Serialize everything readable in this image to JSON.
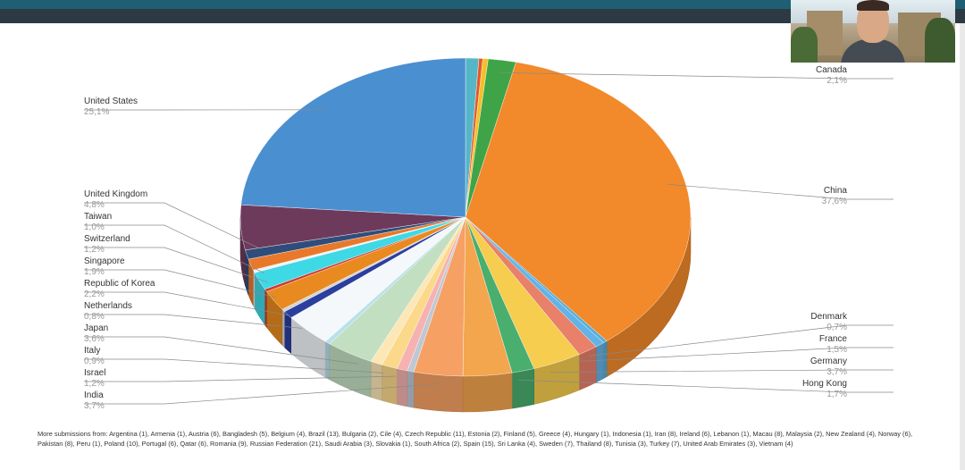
{
  "chart_data": {
    "type": "pie",
    "style": "3d-exploded",
    "slices": [
      {
        "label": "",
        "value": 1.0,
        "color": "#55b6c8"
      },
      {
        "label": "",
        "value": 0.3,
        "color": "#e35a2b"
      },
      {
        "label": "",
        "value": 0.4,
        "color": "#f4c026"
      },
      {
        "label": "Canada",
        "value": 2.1,
        "pct": "2,1%",
        "color": "#3fa447"
      },
      {
        "label": "China",
        "value": 37.6,
        "pct": "37,6%",
        "color": "#f2892a"
      },
      {
        "label": "",
        "value": 0.3,
        "color": "#5aaed8"
      },
      {
        "label": "Denmark",
        "value": 0.7,
        "pct": "0,7%",
        "color": "#64b3e6"
      },
      {
        "label": "France",
        "value": 1.5,
        "pct": "1,5%",
        "color": "#e8806a"
      },
      {
        "label": "Germany",
        "value": 3.7,
        "pct": "3,7%",
        "color": "#f6cd4e"
      },
      {
        "label": "Hong Kong",
        "value": 1.7,
        "pct": "1,7%",
        "color": "#49ae6e"
      },
      {
        "label": "",
        "value": 3.7,
        "color": "#f3a64e"
      },
      {
        "label": "India",
        "value": 3.7,
        "pct": "3,7%",
        "color": "#f6a063"
      },
      {
        "label": "",
        "value": 0.5,
        "color": "#bfc8d4"
      },
      {
        "label": "",
        "value": 0.8,
        "color": "#f5b2b0"
      },
      {
        "label": "Israel",
        "value": 1.2,
        "pct": "1,2%",
        "color": "#fbd88a"
      },
      {
        "label": "Italy",
        "value": 0.9,
        "pct": "0,9%",
        "color": "#fde7b6"
      },
      {
        "label": "Japan",
        "value": 3.6,
        "pct": "3,6%",
        "color": "#c3dfc2"
      },
      {
        "label": "",
        "value": 0.4,
        "color": "#b9e1ec"
      },
      {
        "label": "",
        "value": 3.6,
        "color": "#f4f8fb"
      },
      {
        "label": "Netherlands",
        "value": 0.8,
        "pct": "0,8%",
        "color": "#2c3e9e"
      },
      {
        "label": "",
        "value": 0.3,
        "color": "#d3d3d3"
      },
      {
        "label": "Republic of Korea",
        "value": 2.2,
        "pct": "2,2%",
        "color": "#e88a1f"
      },
      {
        "label": "",
        "value": 0.3,
        "color": "#d23a2a"
      },
      {
        "label": "Singapore",
        "value": 1.9,
        "pct": "1,9%",
        "color": "#3fd9e6"
      },
      {
        "label": "",
        "value": 0.3,
        "color": "#f2f2f2"
      },
      {
        "label": "Switzerland",
        "value": 1.2,
        "pct": "1,2%",
        "color": "#e8792b"
      },
      {
        "label": "Taiwan",
        "value": 1.0,
        "pct": "1,0%",
        "color": "#2f4d7a"
      },
      {
        "label": "United Kingdom",
        "value": 4.8,
        "pct": "4,8%",
        "color": "#6e3a5c"
      },
      {
        "label": "United States",
        "value": 25.1,
        "pct": "25,1%",
        "color": "#4a8fd0"
      }
    ]
  },
  "footnote": "More submissions from: Argentina (1), Armenia (1), Austria (6), Bangladesh (5), Belgium (4), Brazil (13), Bulgaria (2), Cile (4), Czech Republic (11), Estonia (2), Finland (5), Greece (4), Hungary (1), Indonesia (1), Iran (8), Ireland (6), Lebanon (1), Macau (8), Malaysia (2), New Zealand (4), Norway (6), Pakistan (8), Peru (1), Poland (10), Portugal (6), Qatar (6), Romania (9), Russian Federation (21), Saudi Arabia (3), Slovakia (1), South Africa (2), Spain (15), Sri Lanka (4), Sweden (7), Thailand (8), Tunisia (3), Turkey (7), United Arab Emirates (3), Vietnam (4)"
}
